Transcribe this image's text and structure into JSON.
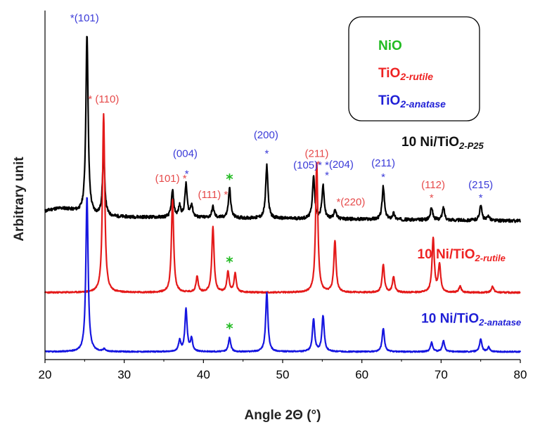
{
  "chart_data": {
    "type": "line",
    "xlabel": "Angle 2Θ (°)",
    "ylabel": "Arbitrary unit",
    "xlim": [
      20,
      80
    ],
    "x_ticks": [
      "20",
      "30",
      "40",
      "50",
      "60",
      "70",
      "80"
    ],
    "grid": false,
    "legend": {
      "position": "top-right",
      "entries": [
        {
          "text": "NiO",
          "sub": "",
          "color": "#22bb22"
        },
        {
          "text": "TiO",
          "sub": "2-rutile",
          "color": "#ee2222"
        },
        {
          "text": "TiO",
          "sub": "2-anatase",
          "color": "#1f1fd6"
        }
      ]
    },
    "series": [
      {
        "name": "10 Ni/TiO",
        "name_sub": "2-P25",
        "color": "#000000",
        "baseline": 0.4,
        "noise": 0.05,
        "noise_seed": 11,
        "peaks": [
          [
            25.3,
            5.8
          ],
          [
            27.4,
            2.0
          ],
          [
            36.1,
            0.85
          ],
          [
            37.0,
            0.35
          ],
          [
            37.8,
            1.05
          ],
          [
            38.5,
            0.4
          ],
          [
            41.2,
            0.35
          ],
          [
            43.3,
            0.95
          ],
          [
            48.0,
            1.7
          ],
          [
            53.9,
            1.35
          ],
          [
            55.1,
            1.05
          ],
          [
            56.6,
            0.3
          ],
          [
            62.7,
            1.05
          ],
          [
            64.0,
            0.2
          ],
          [
            68.8,
            0.4
          ],
          [
            70.3,
            0.4
          ],
          [
            75.0,
            0.5
          ],
          [
            76.0,
            0.15
          ]
        ]
      },
      {
        "name": "10 Ni/TiO",
        "name_sub": "2-rutile",
        "color": "#e41a1a",
        "baseline": -2.05,
        "noise": 0.022,
        "noise_seed": 23,
        "peaks": [
          [
            27.4,
            5.75
          ],
          [
            36.1,
            3.0
          ],
          [
            39.2,
            0.5
          ],
          [
            41.2,
            2.1
          ],
          [
            43.1,
            0.65
          ],
          [
            44.0,
            0.6
          ],
          [
            54.3,
            4.2
          ],
          [
            56.6,
            1.65
          ],
          [
            62.7,
            0.9
          ],
          [
            64.0,
            0.5
          ],
          [
            69.0,
            1.75
          ],
          [
            69.8,
            0.9
          ],
          [
            72.4,
            0.2
          ],
          [
            76.5,
            0.2
          ]
        ]
      },
      {
        "name": "10 Ni/TiO",
        "name_sub": "2-anatase",
        "color": "#1616e0",
        "baseline": -3.95,
        "noise": 0.018,
        "noise_seed": 37,
        "peaks": [
          [
            25.3,
            5.0
          ],
          [
            27.5,
            0.08
          ],
          [
            37.0,
            0.35
          ],
          [
            37.8,
            1.35
          ],
          [
            38.5,
            0.4
          ],
          [
            43.3,
            0.45
          ],
          [
            48.0,
            1.9
          ],
          [
            53.9,
            1.05
          ],
          [
            55.1,
            1.15
          ],
          [
            62.7,
            0.75
          ],
          [
            68.8,
            0.3
          ],
          [
            70.3,
            0.35
          ],
          [
            75.0,
            0.4
          ],
          [
            76.0,
            0.15
          ]
        ]
      }
    ],
    "annotations": [
      {
        "text": "*(101)",
        "color": "#3a3ad8",
        "x": 25.0,
        "y": 6.65
      },
      {
        "text": "* (110)",
        "color": "#e64a4a",
        "x": 27.4,
        "y": 4.05
      },
      {
        "text": "(101) *",
        "color": "#e64a4a",
        "x": 35.9,
        "y": 1.5
      },
      {
        "text": "(004)",
        "color": "#3a3ad8",
        "x": 37.7,
        "y": 2.3
      },
      {
        "text": "*",
        "color": "#3a3ad8",
        "x": 37.9,
        "y": 1.65
      },
      {
        "text": "(111) *",
        "color": "#e64a4a",
        "x": 41.2,
        "y": 0.98
      },
      {
        "text": "(200)",
        "color": "#3a3ad8",
        "x": 47.9,
        "y": 2.9
      },
      {
        "text": "*",
        "color": "#3a3ad8",
        "x": 48.0,
        "y": 2.3
      },
      {
        "text": "(211)",
        "color": "#e64a4a",
        "x": 54.3,
        "y": 2.3
      },
      {
        "text": "(105)* *",
        "color": "#3a3ad8",
        "x": 53.6,
        "y": 1.93
      },
      {
        "text": "*",
        "color": "#e64a4a",
        "x": 54.5,
        "y": 1.95
      },
      {
        "text": "(204)",
        "color": "#3a3ad8",
        "x": 57.4,
        "y": 1.95
      },
      {
        "text": "*",
        "color": "#3a3ad8",
        "x": 55.6,
        "y": 1.6
      },
      {
        "text": "*(220)",
        "color": "#e64a4a",
        "x": 58.6,
        "y": 0.75
      },
      {
        "text": "(211)",
        "color": "#3a3ad8",
        "x": 62.7,
        "y": 2.0
      },
      {
        "text": "*",
        "color": "#3a3ad8",
        "x": 62.7,
        "y": 1.55
      },
      {
        "text": "(112)",
        "color": "#e64a4a",
        "x": 69.0,
        "y": 1.3
      },
      {
        "text": "*",
        "color": "#e64a4a",
        "x": 68.8,
        "y": 0.88
      },
      {
        "text": "(215)",
        "color": "#3a3ad8",
        "x": 75.0,
        "y": 1.3
      },
      {
        "text": "*",
        "color": "#3a3ad8",
        "x": 75.0,
        "y": 0.88
      }
    ],
    "nio_markers": [
      {
        "text": "*",
        "color": "#22bb22",
        "x": 43.3,
        "y": 1.43
      },
      {
        "text": "*",
        "color": "#22bb22",
        "x": 43.3,
        "y": -1.22
      },
      {
        "text": "*",
        "color": "#22bb22",
        "x": 43.3,
        "y": -3.35
      }
    ],
    "series_labels": [
      {
        "text": "10 Ni/TiO",
        "sub": "2-P25",
        "color": "#111111",
        "x": 65.0,
        "y": 2.65
      },
      {
        "text": "10 Ni/TiO",
        "sub": "2-rutile",
        "color": "#ee2222",
        "x": 67.0,
        "y": -0.95
      },
      {
        "text": "10 Ni/TiO",
        "sub": "2-anatase",
        "color": "#1f1fd6",
        "x": 67.5,
        "y": -3.02
      }
    ]
  }
}
